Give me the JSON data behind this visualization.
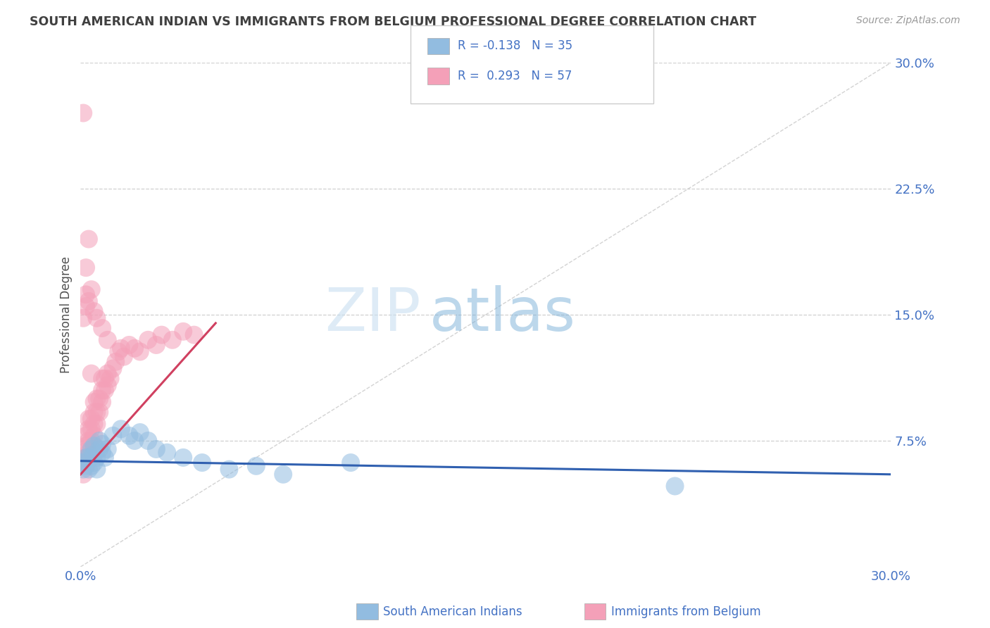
{
  "title": "SOUTH AMERICAN INDIAN VS IMMIGRANTS FROM BELGIUM PROFESSIONAL DEGREE CORRELATION CHART",
  "source": "Source: ZipAtlas.com",
  "ylabel": "Professional Degree",
  "x_min": 0.0,
  "x_max": 0.3,
  "y_min": 0.0,
  "y_max": 0.3,
  "y_tick_labels_right": [
    "7.5%",
    "15.0%",
    "22.5%",
    "30.0%"
  ],
  "y_tick_vals_right": [
    0.075,
    0.15,
    0.225,
    0.3
  ],
  "legend_label_bottom": [
    "South American Indians",
    "Immigrants from Belgium"
  ],
  "blue_color": "#92bce0",
  "pink_color": "#f4a0b8",
  "trendline_blue_color": "#3060b0",
  "trendline_pink_color": "#d04060",
  "diagonal_color": "#c8c8c8",
  "background_color": "#ffffff",
  "grid_color": "#d0d0d0",
  "title_color": "#404040",
  "axis_label_color": "#4472c4",
  "watermark_zip": "ZIP",
  "watermark_atlas": "atlas",
  "blue_R": -0.138,
  "blue_N": 35,
  "pink_R": 0.293,
  "pink_N": 57,
  "blue_scatter_x": [
    0.001,
    0.001,
    0.002,
    0.002,
    0.003,
    0.003,
    0.004,
    0.004,
    0.004,
    0.005,
    0.005,
    0.005,
    0.006,
    0.006,
    0.007,
    0.007,
    0.008,
    0.008,
    0.009,
    0.01,
    0.012,
    0.015,
    0.018,
    0.02,
    0.022,
    0.025,
    0.028,
    0.032,
    0.038,
    0.045,
    0.055,
    0.065,
    0.075,
    0.22,
    0.1
  ],
  "blue_scatter_y": [
    0.058,
    0.062,
    0.06,
    0.065,
    0.058,
    0.065,
    0.06,
    0.065,
    0.07,
    0.062,
    0.067,
    0.072,
    0.058,
    0.065,
    0.07,
    0.075,
    0.068,
    0.073,
    0.065,
    0.07,
    0.078,
    0.082,
    0.078,
    0.075,
    0.08,
    0.075,
    0.07,
    0.068,
    0.065,
    0.062,
    0.058,
    0.06,
    0.055,
    0.048,
    0.062
  ],
  "pink_scatter_x": [
    0.001,
    0.001,
    0.001,
    0.002,
    0.002,
    0.002,
    0.003,
    0.003,
    0.003,
    0.003,
    0.004,
    0.004,
    0.004,
    0.005,
    0.005,
    0.005,
    0.005,
    0.006,
    0.006,
    0.006,
    0.007,
    0.007,
    0.008,
    0.008,
    0.008,
    0.009,
    0.009,
    0.01,
    0.01,
    0.011,
    0.012,
    0.013,
    0.014,
    0.015,
    0.016,
    0.018,
    0.02,
    0.022,
    0.025,
    0.028,
    0.03,
    0.034,
    0.038,
    0.042,
    0.001,
    0.002,
    0.002,
    0.003,
    0.004,
    0.005,
    0.006,
    0.008,
    0.01,
    0.001,
    0.003,
    0.002,
    0.004
  ],
  "pink_scatter_y": [
    0.055,
    0.062,
    0.068,
    0.065,
    0.072,
    0.078,
    0.068,
    0.075,
    0.082,
    0.088,
    0.075,
    0.082,
    0.088,
    0.078,
    0.085,
    0.092,
    0.098,
    0.085,
    0.092,
    0.1,
    0.092,
    0.1,
    0.098,
    0.105,
    0.112,
    0.105,
    0.112,
    0.108,
    0.115,
    0.112,
    0.118,
    0.122,
    0.128,
    0.13,
    0.125,
    0.132,
    0.13,
    0.128,
    0.135,
    0.132,
    0.138,
    0.135,
    0.14,
    0.138,
    0.148,
    0.155,
    0.162,
    0.158,
    0.165,
    0.152,
    0.148,
    0.142,
    0.135,
    0.27,
    0.195,
    0.178,
    0.115
  ]
}
